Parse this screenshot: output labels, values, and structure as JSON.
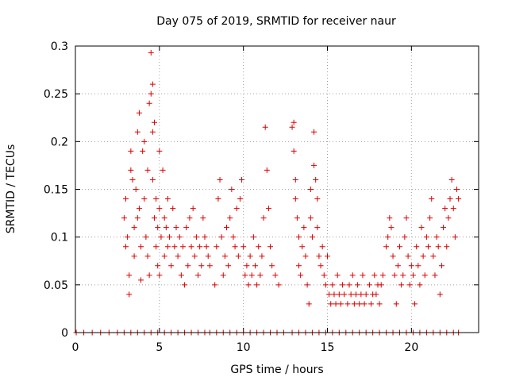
{
  "chart_data": {
    "type": "scatter",
    "title": "Day 075 of 2019, SRMTID for receiver naur",
    "xlabel": "GPS time / hours",
    "ylabel": "SRMTID / TECUs",
    "xlim": [
      0,
      24
    ],
    "ylim": [
      0,
      0.3
    ],
    "xticks": [
      0,
      5,
      10,
      15,
      20
    ],
    "xtick_labels": [
      "0",
      "5",
      "10",
      "15",
      "20"
    ],
    "yticks": [
      0,
      0.05,
      0.1,
      0.15,
      0.2,
      0.25,
      0.3
    ],
    "ytick_labels": [
      "0",
      "0.05",
      "0.1",
      "0.15",
      "0.2",
      "0.25",
      "0.3"
    ],
    "grid": true,
    "marker": "+",
    "series": [
      {
        "name": "SRMTID",
        "color": "#dd0000",
        "points": [
          [
            0.05,
            0
          ],
          [
            0.5,
            0
          ],
          [
            1.0,
            0
          ],
          [
            1.5,
            0
          ],
          [
            2.0,
            0
          ],
          [
            2.5,
            0
          ],
          [
            2.9,
            0
          ],
          [
            3.3,
            0
          ],
          [
            3.7,
            0
          ],
          [
            4.1,
            0
          ],
          [
            4.5,
            0
          ],
          [
            4.9,
            0
          ],
          [
            5.3,
            0
          ],
          [
            5.7,
            0
          ],
          [
            6.1,
            0
          ],
          [
            6.5,
            0
          ],
          [
            6.9,
            0
          ],
          [
            7.3,
            0
          ],
          [
            7.7,
            0
          ],
          [
            8.0,
            0
          ],
          [
            8.4,
            0
          ],
          [
            8.8,
            0
          ],
          [
            9.2,
            0
          ],
          [
            9.6,
            0
          ],
          [
            10.0,
            0
          ],
          [
            10.4,
            0
          ],
          [
            10.8,
            0
          ],
          [
            11.2,
            0
          ],
          [
            11.6,
            0
          ],
          [
            12.0,
            0
          ],
          [
            12.4,
            0
          ],
          [
            12.9,
            0
          ],
          [
            13.3,
            0
          ],
          [
            13.7,
            0
          ],
          [
            14.1,
            0
          ],
          [
            14.5,
            0
          ],
          [
            14.9,
            0
          ],
          [
            15.3,
            0
          ],
          [
            15.7,
            0
          ],
          [
            16.1,
            0
          ],
          [
            16.5,
            0
          ],
          [
            16.9,
            0
          ],
          [
            17.3,
            0
          ],
          [
            17.7,
            0
          ],
          [
            18.1,
            0
          ],
          [
            18.5,
            0
          ],
          [
            18.9,
            0
          ],
          [
            19.3,
            0
          ],
          [
            19.7,
            0
          ],
          [
            20.1,
            0
          ],
          [
            20.5,
            0
          ],
          [
            20.9,
            0
          ],
          [
            21.3,
            0
          ],
          [
            21.7,
            0
          ],
          [
            22.1,
            0
          ],
          [
            22.5,
            0
          ],
          [
            22.8,
            0
          ],
          [
            2.9,
            0.12
          ],
          [
            3.0,
            0.14
          ],
          [
            3.0,
            0.09
          ],
          [
            3.1,
            0.1
          ],
          [
            3.2,
            0.06
          ],
          [
            3.2,
            0.04
          ],
          [
            3.3,
            0.17
          ],
          [
            3.3,
            0.19
          ],
          [
            3.4,
            0.16
          ],
          [
            3.5,
            0.11
          ],
          [
            3.5,
            0.08
          ],
          [
            3.6,
            0.15
          ],
          [
            3.7,
            0.12
          ],
          [
            3.7,
            0.21
          ],
          [
            3.8,
            0.23
          ],
          [
            3.8,
            0.13
          ],
          [
            3.9,
            0.09
          ],
          [
            3.9,
            0.055
          ],
          [
            4.0,
            0.19
          ],
          [
            4.1,
            0.2
          ],
          [
            4.1,
            0.14
          ],
          [
            4.2,
            0.1
          ],
          [
            4.3,
            0.17
          ],
          [
            4.3,
            0.08
          ],
          [
            4.4,
            0.24
          ],
          [
            4.4,
            0.06
          ],
          [
            4.5,
            0.25
          ],
          [
            4.5,
            0.293
          ],
          [
            4.6,
            0.26
          ],
          [
            4.6,
            0.21
          ],
          [
            4.6,
            0.16
          ],
          [
            4.7,
            0.22
          ],
          [
            4.7,
            0.12
          ],
          [
            4.8,
            0.14
          ],
          [
            4.8,
            0.09
          ],
          [
            4.9,
            0.11
          ],
          [
            4.9,
            0.07
          ],
          [
            5.0,
            0.19
          ],
          [
            5.0,
            0.13
          ],
          [
            5.0,
            0.06
          ],
          [
            5.1,
            0.1
          ],
          [
            5.2,
            0.17
          ],
          [
            5.3,
            0.08
          ],
          [
            5.3,
            0.12
          ],
          [
            5.4,
            0.11
          ],
          [
            5.5,
            0.09
          ],
          [
            5.5,
            0.14
          ],
          [
            5.6,
            0.1
          ],
          [
            5.7,
            0.07
          ],
          [
            5.8,
            0.13
          ],
          [
            5.9,
            0.09
          ],
          [
            6.0,
            0.11
          ],
          [
            6.1,
            0.08
          ],
          [
            6.2,
            0.1
          ],
          [
            6.3,
            0.06
          ],
          [
            6.4,
            0.09
          ],
          [
            6.5,
            0.05
          ],
          [
            6.6,
            0.11
          ],
          [
            6.7,
            0.07
          ],
          [
            6.8,
            0.12
          ],
          [
            6.9,
            0.09
          ],
          [
            7.0,
            0.13
          ],
          [
            7.1,
            0.08
          ],
          [
            7.2,
            0.1
          ],
          [
            7.3,
            0.06
          ],
          [
            7.4,
            0.09
          ],
          [
            7.5,
            0.07
          ],
          [
            7.6,
            0.12
          ],
          [
            7.7,
            0.1
          ],
          [
            7.8,
            0.09
          ],
          [
            7.9,
            0.08
          ],
          [
            8.0,
            0.07
          ],
          [
            8.3,
            0.05
          ],
          [
            8.4,
            0.09
          ],
          [
            8.5,
            0.14
          ],
          [
            8.6,
            0.16
          ],
          [
            8.7,
            0.1
          ],
          [
            8.8,
            0.06
          ],
          [
            8.9,
            0.08
          ],
          [
            9.0,
            0.11
          ],
          [
            9.1,
            0.07
          ],
          [
            9.2,
            0.12
          ],
          [
            9.3,
            0.15
          ],
          [
            9.4,
            0.1
          ],
          [
            9.5,
            0.09
          ],
          [
            9.6,
            0.13
          ],
          [
            9.7,
            0.08
          ],
          [
            9.8,
            0.14
          ],
          [
            9.9,
            0.16
          ],
          [
            10.0,
            0.09
          ],
          [
            10.1,
            0.06
          ],
          [
            10.2,
            0.07
          ],
          [
            10.3,
            0.05
          ],
          [
            10.4,
            0.08
          ],
          [
            10.5,
            0.06
          ],
          [
            10.6,
            0.1
          ],
          [
            10.7,
            0.07
          ],
          [
            10.8,
            0.05
          ],
          [
            10.9,
            0.09
          ],
          [
            11.0,
            0.06
          ],
          [
            11.1,
            0.08
          ],
          [
            11.2,
            0.12
          ],
          [
            11.3,
            0.215
          ],
          [
            11.4,
            0.17
          ],
          [
            11.5,
            0.13
          ],
          [
            11.6,
            0.09
          ],
          [
            11.7,
            0.07
          ],
          [
            11.9,
            0.06
          ],
          [
            12.1,
            0.05
          ],
          [
            12.9,
            0.215
          ],
          [
            13.0,
            0.22
          ],
          [
            13.0,
            0.19
          ],
          [
            13.1,
            0.16
          ],
          [
            13.1,
            0.14
          ],
          [
            13.2,
            0.12
          ],
          [
            13.3,
            0.1
          ],
          [
            13.3,
            0.07
          ],
          [
            13.4,
            0.06
          ],
          [
            13.5,
            0.09
          ],
          [
            13.6,
            0.11
          ],
          [
            13.7,
            0.08
          ],
          [
            13.8,
            0.05
          ],
          [
            13.9,
            0.03
          ],
          [
            14.0,
            0.12
          ],
          [
            14.0,
            0.15
          ],
          [
            14.1,
            0.1
          ],
          [
            14.2,
            0.21
          ],
          [
            14.2,
            0.175
          ],
          [
            14.3,
            0.16
          ],
          [
            14.4,
            0.14
          ],
          [
            14.4,
            0.11
          ],
          [
            14.5,
            0.08
          ],
          [
            14.6,
            0.07
          ],
          [
            14.7,
            0.09
          ],
          [
            14.8,
            0.06
          ],
          [
            14.9,
            0.05
          ],
          [
            15.0,
            0.08
          ],
          [
            15.1,
            0.04
          ],
          [
            15.2,
            0.03
          ],
          [
            15.3,
            0.05
          ],
          [
            15.4,
            0.04
          ],
          [
            15.5,
            0.03
          ],
          [
            15.6,
            0.06
          ],
          [
            15.7,
            0.04
          ],
          [
            15.8,
            0.03
          ],
          [
            15.9,
            0.05
          ],
          [
            16.0,
            0.04
          ],
          [
            16.2,
            0.03
          ],
          [
            16.3,
            0.05
          ],
          [
            16.4,
            0.04
          ],
          [
            16.5,
            0.06
          ],
          [
            16.6,
            0.03
          ],
          [
            16.7,
            0.04
          ],
          [
            16.8,
            0.05
          ],
          [
            16.9,
            0.03
          ],
          [
            17.0,
            0.04
          ],
          [
            17.1,
            0.06
          ],
          [
            17.2,
            0.03
          ],
          [
            17.3,
            0.04
          ],
          [
            17.5,
            0.05
          ],
          [
            17.6,
            0.03
          ],
          [
            17.7,
            0.04
          ],
          [
            17.8,
            0.06
          ],
          [
            17.9,
            0.04
          ],
          [
            18.0,
            0.05
          ],
          [
            18.1,
            0.03
          ],
          [
            18.2,
            0.05
          ],
          [
            18.3,
            0.06
          ],
          [
            18.5,
            0.09
          ],
          [
            18.6,
            0.1
          ],
          [
            18.7,
            0.12
          ],
          [
            18.8,
            0.11
          ],
          [
            18.9,
            0.08
          ],
          [
            19.0,
            0.06
          ],
          [
            19.1,
            0.03
          ],
          [
            19.2,
            0.07
          ],
          [
            19.3,
            0.09
          ],
          [
            19.4,
            0.05
          ],
          [
            19.5,
            0.06
          ],
          [
            19.6,
            0.1
          ],
          [
            19.7,
            0.12
          ],
          [
            19.8,
            0.08
          ],
          [
            19.9,
            0.05
          ],
          [
            20.0,
            0.07
          ],
          [
            20.1,
            0.06
          ],
          [
            20.2,
            0.03
          ],
          [
            20.3,
            0.09
          ],
          [
            20.4,
            0.07
          ],
          [
            20.5,
            0.05
          ],
          [
            20.6,
            0.11
          ],
          [
            20.7,
            0.08
          ],
          [
            20.8,
            0.06
          ],
          [
            20.9,
            0.1
          ],
          [
            21.0,
            0.09
          ],
          [
            21.1,
            0.12
          ],
          [
            21.2,
            0.14
          ],
          [
            21.3,
            0.08
          ],
          [
            21.4,
            0.06
          ],
          [
            21.5,
            0.1
          ],
          [
            21.6,
            0.09
          ],
          [
            21.7,
            0.04
          ],
          [
            21.8,
            0.07
          ],
          [
            21.9,
            0.11
          ],
          [
            22.0,
            0.13
          ],
          [
            22.1,
            0.09
          ],
          [
            22.2,
            0.12
          ],
          [
            22.3,
            0.14
          ],
          [
            22.4,
            0.16
          ],
          [
            22.5,
            0.13
          ],
          [
            22.6,
            0.1
          ],
          [
            22.7,
            0.15
          ],
          [
            22.8,
            0.14
          ]
        ]
      }
    ]
  }
}
